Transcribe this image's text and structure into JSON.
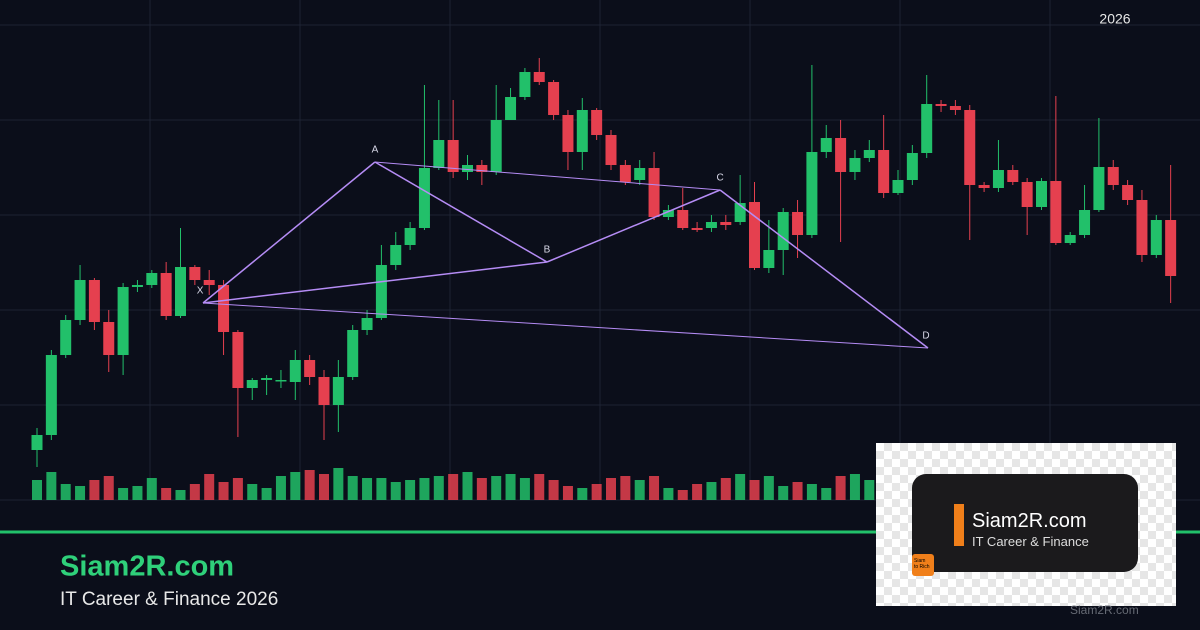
{
  "chart_data": {
    "type": "candlestick",
    "annotation": "2026",
    "open": [
      50,
      65,
      145,
      180,
      220,
      178,
      145,
      213,
      215,
      227,
      184,
      233,
      220,
      215,
      168,
      112,
      120,
      120,
      118,
      140,
      123,
      95,
      123,
      170,
      182,
      235,
      255,
      272,
      332,
      360,
      328,
      335,
      328,
      380,
      403,
      428,
      418,
      385,
      348,
      390,
      365,
      335,
      320,
      332,
      283,
      290,
      272,
      272,
      278,
      278,
      298,
      232,
      250,
      288,
      265,
      348,
      362,
      328,
      342,
      350,
      307,
      320,
      347,
      396,
      394,
      390,
      315,
      312,
      330,
      318,
      293,
      319,
      257,
      265,
      290,
      333,
      315,
      300,
      245,
      280
    ],
    "close": [
      65,
      145,
      180,
      220,
      178,
      145,
      213,
      215,
      227,
      184,
      233,
      220,
      215,
      168,
      112,
      120,
      122,
      120,
      140,
      123,
      95,
      123,
      170,
      182,
      235,
      255,
      272,
      332,
      360,
      328,
      335,
      328,
      380,
      403,
      428,
      418,
      385,
      348,
      390,
      365,
      335,
      318,
      332,
      283,
      290,
      272,
      270,
      278,
      275,
      297,
      232,
      250,
      288,
      265,
      348,
      362,
      328,
      342,
      350,
      307,
      320,
      347,
      396,
      394,
      390,
      315,
      312,
      330,
      318,
      293,
      319,
      257,
      265,
      290,
      333,
      315,
      300,
      245,
      280,
      224
    ],
    "high": [
      72,
      150,
      185,
      235,
      222,
      190,
      217,
      220,
      230,
      238,
      272,
      235,
      230,
      220,
      170,
      122,
      125,
      130,
      150,
      145,
      130,
      140,
      175,
      190,
      255,
      268,
      278,
      415,
      400,
      400,
      345,
      340,
      415,
      412,
      432,
      442,
      420,
      390,
      402,
      392,
      370,
      340,
      340,
      348,
      295,
      312,
      278,
      285,
      285,
      325,
      318,
      280,
      292,
      300,
      435,
      375,
      380,
      350,
      360,
      385,
      330,
      355,
      425,
      400,
      400,
      395,
      318,
      360,
      335,
      322,
      322,
      404,
      268,
      315,
      382,
      340,
      320,
      310,
      285,
      335
    ],
    "low": [
      33,
      60,
      142,
      175,
      170,
      128,
      125,
      208,
      212,
      180,
      182,
      215,
      205,
      145,
      63,
      100,
      105,
      112,
      100,
      115,
      60,
      68,
      120,
      165,
      180,
      230,
      250,
      270,
      330,
      322,
      320,
      315,
      325,
      380,
      400,
      415,
      380,
      330,
      330,
      360,
      330,
      315,
      315,
      280,
      280,
      270,
      268,
      268,
      270,
      275,
      230,
      227,
      225,
      242,
      262,
      342,
      258,
      320,
      338,
      302,
      305,
      315,
      342,
      388,
      385,
      260,
      308,
      308,
      315,
      265,
      290,
      255,
      255,
      262,
      288,
      310,
      295,
      238,
      242,
      197
    ],
    "volume": [
      20,
      28,
      16,
      14,
      20,
      24,
      12,
      14,
      22,
      12,
      10,
      16,
      26,
      18,
      22,
      16,
      12,
      24,
      28,
      30,
      26,
      32,
      24,
      22,
      22,
      18,
      20,
      22,
      24,
      26,
      28,
      22,
      24,
      26,
      22,
      26,
      20,
      14,
      12,
      16,
      22,
      24,
      20,
      24,
      12,
      10,
      16,
      18,
      22,
      26,
      20,
      24,
      14,
      18,
      16,
      12,
      24,
      26,
      20,
      26,
      24,
      12,
      20,
      18,
      16,
      14,
      12,
      22,
      24,
      26,
      14,
      12,
      18,
      22,
      26,
      20,
      16,
      14,
      18,
      24
    ],
    "up_color": "#22c06a",
    "down_color": "#e5404f",
    "pattern_color": "#b58cf5",
    "ylim": [
      0,
      500
    ],
    "pattern": [
      {
        "label": "X",
        "x": 11.57,
        "y": 197
      },
      {
        "label": "A",
        "x": 23.55,
        "y": 338
      },
      {
        "label": "B",
        "x": 35.54,
        "y": 238
      },
      {
        "label": "C",
        "x": 47.6,
        "y": 310
      },
      {
        "label": "D",
        "x": 62.09,
        "y": 152
      }
    ]
  },
  "brand": {
    "name": "Siam2R.com",
    "tagline": "IT Career & Finance 2026"
  },
  "logo": {
    "name": "Siam2R.com",
    "tagline": "IT Career & Finance",
    "icon_lines": [
      "Siam",
      "to Rich"
    ]
  },
  "footer": "Siam2R.com"
}
